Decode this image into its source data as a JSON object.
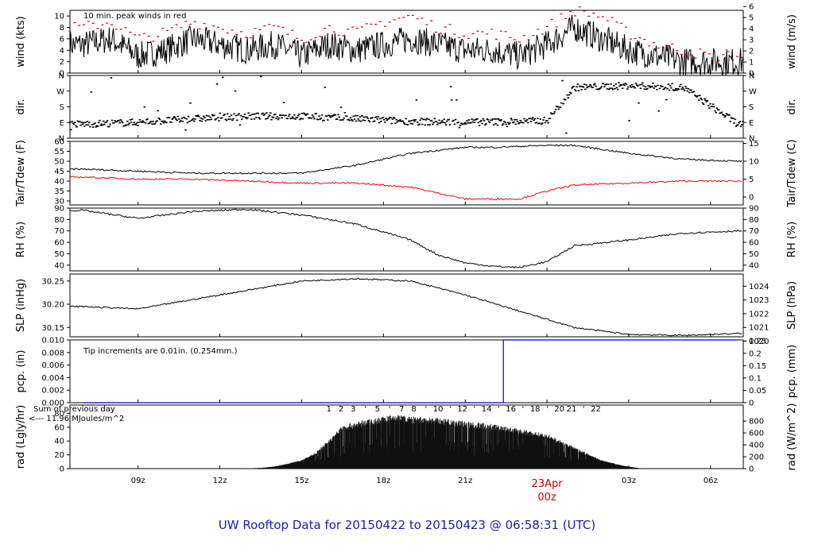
{
  "title": "UW Rooftop Data for 20150422  to  20150423 @ 06:58:31  (UTC)",
  "x_axis": {
    "ticks": [
      {
        "label": "09z",
        "hour": 9
      },
      {
        "label": "12z",
        "hour": 12
      },
      {
        "label": "15z",
        "hour": 15
      },
      {
        "label": "18z",
        "hour": 18
      },
      {
        "label": "21z",
        "hour": 21
      },
      {
        "label": "03z",
        "hour": 27
      },
      {
        "label": "06z",
        "hour": 30
      }
    ],
    "day_marker": {
      "date": "23Apr",
      "hour_label": "00z",
      "hour": 24
    }
  },
  "colors": {
    "title": "#1a1ab4",
    "wind_peak": "#cc0000",
    "dewpoint": "#ff0000",
    "precip": "#0000cc",
    "radiation_note": "#9900aa",
    "day_marker": "#cc0000"
  },
  "panels": {
    "wind": {
      "ylabel_left": "wind (kts)",
      "ylabel_right": "wind (m/s)",
      "left_ticks": [
        "0",
        "2",
        "4",
        "6",
        "8",
        "10"
      ],
      "right_ticks": [
        "0",
        "1",
        "2",
        "3",
        "4",
        "5",
        "6"
      ],
      "note": "10 min. peak winds in red"
    },
    "dir": {
      "ylabel_left": "dir.",
      "ylabel_right": "dir.",
      "ticks": [
        "N",
        "E",
        "S",
        "W",
        "N"
      ]
    },
    "temp": {
      "ylabel_left": "Tair/Tdew (F)",
      "ylabel_right": "Tair/Tdew (C)",
      "left_ticks": [
        "30",
        "35",
        "40",
        "45",
        "50",
        "55",
        "60"
      ],
      "right_ticks": [
        "0",
        "5",
        "10",
        "15"
      ]
    },
    "rh": {
      "ylabel_left": "RH (%)",
      "ylabel_right": "RH (%)",
      "ticks": [
        "40",
        "50",
        "60",
        "70",
        "80",
        "90"
      ]
    },
    "slp": {
      "ylabel_left": "SLP (inHg)",
      "ylabel_right": "SLP (hPa)",
      "left_ticks": [
        "30.15",
        "30.20",
        "30.25"
      ],
      "right_ticks": [
        "1020",
        "1021",
        "1022",
        "1023",
        "1024"
      ]
    },
    "pcp": {
      "ylabel_left": "pcp. (in)",
      "ylabel_right": "pcp. (mm)",
      "left_ticks": [
        "0.000",
        "0.002",
        "0.004",
        "0.006",
        "0.008",
        "0.010"
      ],
      "right_ticks": [
        "0",
        "0.05",
        "0.1",
        "0.15",
        "0.2",
        "0.25"
      ],
      "note": "Tip increments are 0.01in. (0.254mm.)"
    },
    "rad": {
      "ylabel_left": "rad (Lgly/hr)",
      "ylabel_right": "rad (W/m^2)",
      "left_ticks": [
        "0",
        "20",
        "40",
        "60",
        "80"
      ],
      "right_ticks": [
        "0",
        "200",
        "400",
        "600",
        "800"
      ],
      "note_line1": "Sum of previous day",
      "note_line2": "<--- 11.96 MJoules/m^2",
      "hour_labels": [
        "1",
        "2",
        "3",
        "'",
        "5",
        "'",
        "7",
        "8",
        "'",
        "10",
        "'",
        "12",
        "'",
        "14",
        "'",
        "16",
        "'",
        "18",
        "'",
        "20",
        "21",
        "'",
        "22"
      ]
    }
  },
  "chart_data": [
    {
      "type": "line",
      "name": "wind",
      "unit": "kts",
      "ylim": [
        0,
        11
      ],
      "series": [
        {
          "name": "wind",
          "hours": [
            7,
            8,
            9,
            10,
            11,
            12,
            13,
            14,
            15,
            16,
            17,
            18,
            19,
            20,
            21,
            22,
            23,
            24,
            25,
            26,
            27,
            28,
            29,
            30,
            31
          ],
          "values": [
            5,
            6,
            3,
            4,
            6,
            5,
            4,
            5,
            3,
            5,
            4,
            5,
            6,
            5,
            4,
            4,
            3,
            5,
            8,
            6,
            4,
            3,
            2,
            2,
            2
          ]
        },
        {
          "name": "10 min. peak winds",
          "hours": [
            7,
            8,
            9,
            10,
            11,
            12,
            13,
            14,
            15,
            16,
            17,
            18,
            19,
            20,
            21,
            22,
            23,
            24,
            25,
            26,
            27,
            28,
            29,
            30,
            31
          ],
          "values": [
            8,
            9,
            6,
            7,
            9,
            8,
            7,
            8,
            6,
            8,
            7,
            9,
            10,
            8,
            7,
            7,
            6,
            8,
            11,
            10,
            7,
            5,
            4,
            3,
            3
          ]
        }
      ]
    },
    {
      "type": "scatter",
      "name": "dir",
      "unit": "deg",
      "ylim": [
        0,
        360
      ],
      "series": [
        {
          "name": "direction",
          "hours": [
            7,
            9,
            11,
            13,
            15,
            17,
            19,
            21,
            23,
            24,
            25,
            27,
            29,
            31
          ],
          "values": [
            80,
            90,
            110,
            125,
            125,
            110,
            95,
            90,
            95,
            100,
            290,
            300,
            290,
            80
          ]
        }
      ]
    },
    {
      "type": "line",
      "name": "temp",
      "unit": "F",
      "ylim": [
        28,
        60
      ],
      "series": [
        {
          "name": "Tair",
          "hours": [
            7,
            9,
            11,
            13,
            15,
            17,
            19,
            21,
            22,
            24,
            25,
            27,
            29,
            31
          ],
          "values": [
            46,
            45,
            44,
            44,
            44,
            48,
            54,
            57,
            57,
            58,
            58,
            54,
            51,
            50
          ]
        },
        {
          "name": "Tdew",
          "hours": [
            7,
            9,
            11,
            13,
            15,
            17,
            19,
            20,
            21,
            22,
            23,
            24,
            25,
            27,
            29,
            31
          ],
          "values": [
            42,
            41,
            41,
            40,
            39,
            39,
            37,
            34,
            31,
            31,
            31,
            35,
            38,
            39,
            40,
            40
          ]
        }
      ]
    },
    {
      "type": "line",
      "name": "rh",
      "unit": "%",
      "ylim": [
        35,
        90
      ],
      "series": [
        {
          "name": "RH",
          "hours": [
            7,
            9,
            11,
            13,
            15,
            17,
            19,
            20,
            21,
            22,
            23,
            24,
            25,
            27,
            29,
            31
          ],
          "values": [
            88,
            81,
            87,
            89,
            84,
            76,
            62,
            49,
            42,
            39,
            38,
            43,
            57,
            62,
            68,
            70
          ]
        }
      ]
    },
    {
      "type": "line",
      "name": "slp",
      "unit": "inHg",
      "ylim": [
        30.13,
        30.265
      ],
      "series": [
        {
          "name": "SLP",
          "hours": [
            7,
            9,
            11,
            13,
            15,
            17,
            19,
            21,
            23,
            25,
            27,
            29,
            31
          ],
          "values": [
            30.195,
            30.19,
            30.21,
            30.23,
            30.25,
            30.255,
            30.25,
            30.22,
            30.185,
            30.15,
            30.135,
            30.133,
            30.137
          ]
        }
      ]
    },
    {
      "type": "line",
      "name": "pcp",
      "unit": "in",
      "ylim": [
        0,
        0.01
      ],
      "series": [
        {
          "name": "precip",
          "hours": [
            7,
            22.4,
            22.4,
            31
          ],
          "values": [
            0,
            0,
            0.01,
            0.01
          ]
        }
      ]
    },
    {
      "type": "area",
      "name": "rad",
      "unit": "Lgly/hr",
      "ylim": [
        0,
        80
      ],
      "series": [
        {
          "name": "radiation",
          "hours": [
            12.8,
            13.5,
            14,
            14.5,
            15,
            15.5,
            16,
            16.5,
            17,
            18,
            18.5,
            19,
            20,
            21,
            22,
            23,
            24,
            25,
            26,
            26.8,
            27.5
          ],
          "values": [
            0,
            1,
            3,
            7,
            12,
            22,
            40,
            60,
            65,
            72,
            75,
            72,
            70,
            66,
            62,
            55,
            48,
            30,
            12,
            4,
            0
          ]
        }
      ]
    }
  ]
}
